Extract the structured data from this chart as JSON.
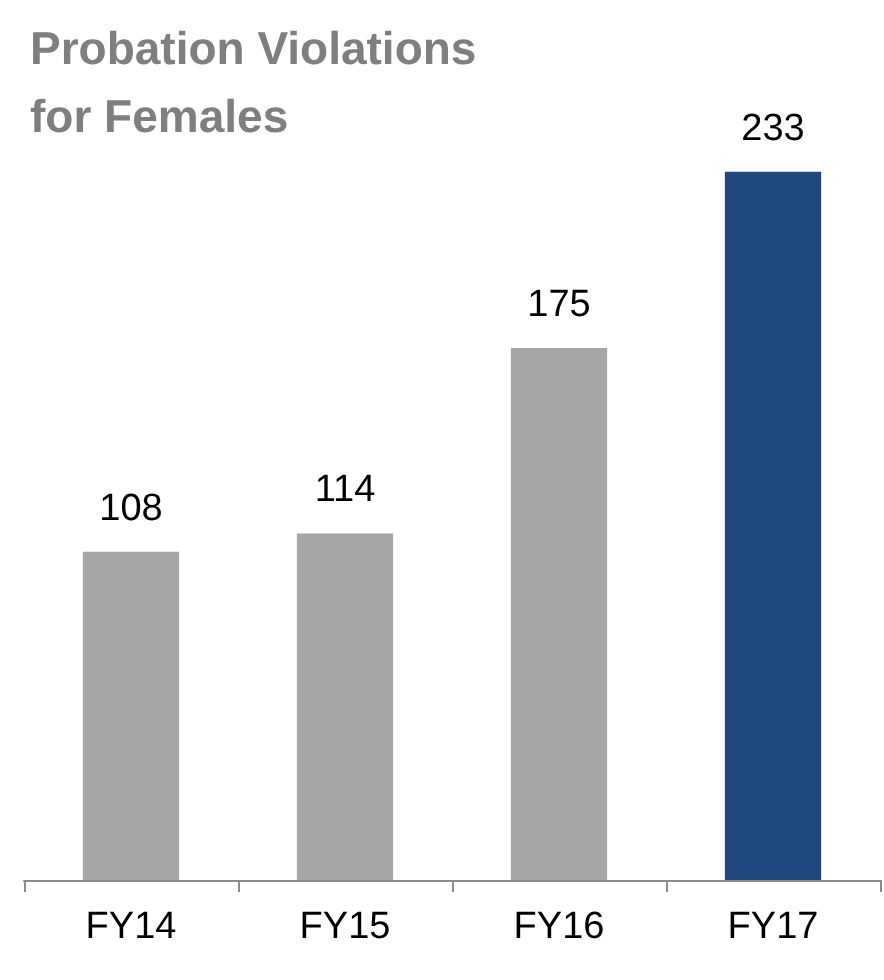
{
  "chart_data": {
    "type": "bar",
    "title": "Probation Violations for Females",
    "categories": [
      "FY14",
      "FY15",
      "FY16",
      "FY17"
    ],
    "values": [
      108,
      114,
      175,
      233
    ],
    "colors": [
      "#a6a6a6",
      "#a6a6a6",
      "#a6a6a6",
      "#1f497d"
    ],
    "data_labels": true
  }
}
